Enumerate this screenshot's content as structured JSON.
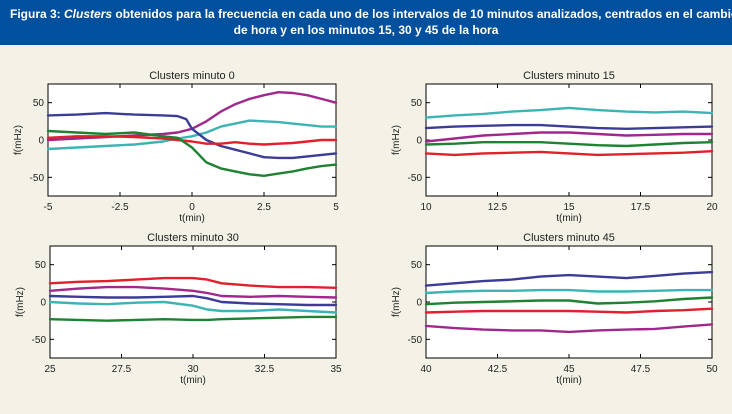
{
  "figure_title": {
    "prefix": "Figura 3: ",
    "italic_word": "Clusters",
    "line1_rest": " obtenidos para la frecuencia en cada uno de los intervalos de 10 minutos analizados, centrados en el cambio",
    "line2": "de hora y en los minutos 15, 30 y 45 de la hora"
  },
  "colors": {
    "header_bg": "#00509e",
    "page_bg": "#f4f1e6",
    "red": "#e0202a",
    "purple": "#a0288c",
    "blue": "#3c3c96",
    "cyan": "#3cb4b4",
    "green": "#1e8232"
  },
  "chart_data": [
    {
      "type": "line",
      "title": "Clusters minuto 0",
      "xlabel": "t(min)",
      "ylabel": "f(mHz)",
      "xlim": [
        -5,
        5
      ],
      "ylim": [
        -75,
        75
      ],
      "xticks": [
        -5,
        -2.5,
        0,
        2.5,
        5
      ],
      "xtick_labels": [
        "-5",
        "-2.5",
        "0",
        "2.5",
        "5"
      ],
      "yticks": [
        -50,
        0,
        50
      ],
      "ytick_labels": [
        "-50",
        "0",
        "50"
      ],
      "series": [
        {
          "color": "#a0288c",
          "x": [
            -5,
            -4,
            -3,
            -2,
            -1,
            -0.5,
            0,
            0.5,
            1,
            1.5,
            2,
            2.5,
            3,
            3.5,
            4,
            4.5,
            5
          ],
          "y": [
            0,
            2,
            4,
            6,
            8,
            10,
            15,
            25,
            38,
            48,
            55,
            60,
            64,
            63,
            60,
            55,
            50
          ]
        },
        {
          "color": "#3cb4b4",
          "x": [
            -5,
            -4,
            -3,
            -2,
            -1,
            -0.5,
            0,
            0.5,
            1,
            1.5,
            2,
            2.5,
            3,
            3.5,
            4,
            4.5,
            5
          ],
          "y": [
            -12,
            -10,
            -8,
            -6,
            -2,
            2,
            5,
            10,
            18,
            22,
            26,
            25,
            24,
            22,
            20,
            18,
            18
          ]
        },
        {
          "color": "#3c3c96",
          "x": [
            -5,
            -4,
            -3,
            -2,
            -1,
            -0.5,
            -0.2,
            0,
            0.5,
            1,
            1.5,
            2,
            2.5,
            3,
            3.5,
            4,
            4.5,
            5
          ],
          "y": [
            33,
            34,
            36,
            34,
            33,
            32,
            28,
            15,
            0,
            -8,
            -13,
            -18,
            -23,
            -24,
            -24,
            -22,
            -20,
            -18
          ]
        },
        {
          "color": "#e0202a",
          "x": [
            -5,
            -4,
            -3,
            -2,
            -1,
            -0.5,
            0,
            0.5,
            1,
            1.5,
            2,
            2.5,
            3,
            3.5,
            4,
            4.5,
            5
          ],
          "y": [
            3,
            5,
            5,
            4,
            2,
            0,
            -2,
            -5,
            -5,
            -3,
            -5,
            -6,
            -5,
            -4,
            -2,
            0,
            0
          ]
        },
        {
          "color": "#1e8232",
          "x": [
            -5,
            -4,
            -3,
            -2,
            -1,
            -0.5,
            0,
            0.5,
            1,
            1.5,
            2,
            2.5,
            3,
            3.5,
            4,
            4.5,
            5
          ],
          "y": [
            12,
            10,
            8,
            10,
            5,
            3,
            -10,
            -30,
            -38,
            -42,
            -46,
            -48,
            -45,
            -42,
            -38,
            -35,
            -33
          ]
        }
      ]
    },
    {
      "type": "line",
      "title": "Clusters minuto 15",
      "xlabel": "t(min)",
      "ylabel": "f(mHz)",
      "xlim": [
        10,
        20
      ],
      "ylim": [
        -75,
        75
      ],
      "xticks": [
        10,
        12.5,
        15,
        17.5,
        20
      ],
      "xtick_labels": [
        "10",
        "12.5",
        "15",
        "17.5",
        "20"
      ],
      "yticks": [
        -50,
        0,
        50
      ],
      "ytick_labels": [
        "-50",
        "0",
        "50"
      ],
      "series": [
        {
          "color": "#3cb4b4",
          "x": [
            10,
            11,
            12,
            13,
            14,
            15,
            16,
            17,
            18,
            19,
            20
          ],
          "y": [
            30,
            33,
            35,
            38,
            40,
            43,
            40,
            38,
            37,
            38,
            36
          ]
        },
        {
          "color": "#3c3c96",
          "x": [
            10,
            11,
            12,
            13,
            14,
            15,
            16,
            17,
            18,
            19,
            20
          ],
          "y": [
            16,
            18,
            19,
            20,
            20,
            18,
            16,
            15,
            16,
            17,
            18
          ]
        },
        {
          "color": "#a0288c",
          "x": [
            10,
            11,
            12,
            13,
            14,
            15,
            16,
            17,
            18,
            19,
            20
          ],
          "y": [
            -2,
            2,
            6,
            8,
            10,
            10,
            8,
            6,
            7,
            8,
            8
          ]
        },
        {
          "color": "#1e8232",
          "x": [
            10,
            11,
            12,
            13,
            14,
            15,
            16,
            17,
            18,
            19,
            20
          ],
          "y": [
            -6,
            -5,
            -3,
            -3,
            -3,
            -5,
            -7,
            -8,
            -6,
            -4,
            -3
          ]
        },
        {
          "color": "#e0202a",
          "x": [
            10,
            11,
            12,
            13,
            14,
            15,
            16,
            17,
            18,
            19,
            20
          ],
          "y": [
            -18,
            -20,
            -18,
            -17,
            -16,
            -18,
            -20,
            -19,
            -18,
            -17,
            -15
          ]
        }
      ]
    },
    {
      "type": "line",
      "title": "Clusters minuto 30",
      "xlabel": "t(min)",
      "ylabel": "f(mHz)",
      "xlim": [
        25,
        35
      ],
      "ylim": [
        -75,
        75
      ],
      "xticks": [
        25,
        27.5,
        30,
        32.5,
        35
      ],
      "xtick_labels": [
        "25",
        "27.5",
        "30",
        "32.5",
        "35"
      ],
      "yticks": [
        -50,
        0,
        50
      ],
      "ytick_labels": [
        "-50",
        "0",
        "50"
      ],
      "series": [
        {
          "color": "#e0202a",
          "x": [
            25,
            26,
            27,
            28,
            29,
            30,
            30.5,
            31,
            32,
            33,
            34,
            35
          ],
          "y": [
            25,
            27,
            28,
            30,
            32,
            32,
            30,
            25,
            22,
            20,
            20,
            19
          ]
        },
        {
          "color": "#a0288c",
          "x": [
            25,
            26,
            27,
            28,
            29,
            30,
            30.5,
            31,
            32,
            33,
            34,
            35
          ],
          "y": [
            15,
            18,
            20,
            20,
            18,
            15,
            12,
            8,
            7,
            8,
            7,
            6
          ]
        },
        {
          "color": "#3c3c96",
          "x": [
            25,
            26,
            27,
            28,
            29,
            30,
            30.5,
            31,
            32,
            33,
            34,
            35
          ],
          "y": [
            8,
            7,
            6,
            6,
            7,
            8,
            5,
            0,
            -2,
            -3,
            -4,
            -4
          ]
        },
        {
          "color": "#3cb4b4",
          "x": [
            25,
            26,
            27,
            28,
            29,
            30,
            30.5,
            31,
            32,
            33,
            34,
            35
          ],
          "y": [
            0,
            -2,
            -3,
            -1,
            0,
            -5,
            -10,
            -12,
            -12,
            -10,
            -12,
            -14
          ]
        },
        {
          "color": "#1e8232",
          "x": [
            25,
            26,
            27,
            28,
            29,
            30,
            30.5,
            31,
            32,
            33,
            34,
            35
          ],
          "y": [
            -23,
            -24,
            -25,
            -24,
            -23,
            -24,
            -24,
            -23,
            -22,
            -21,
            -20,
            -20
          ]
        }
      ]
    },
    {
      "type": "line",
      "title": "Clusters minuto 45",
      "xlabel": "t(min)",
      "ylabel": "f(mHz)",
      "xlim": [
        40,
        50
      ],
      "ylim": [
        -75,
        75
      ],
      "xticks": [
        40,
        42.5,
        45,
        47.5,
        50
      ],
      "xtick_labels": [
        "40",
        "42.5",
        "45",
        "47.5",
        "50"
      ],
      "yticks": [
        -50,
        0,
        50
      ],
      "ytick_labels": [
        "-50",
        "0",
        "50"
      ],
      "series": [
        {
          "color": "#3c3c96",
          "x": [
            40,
            41,
            42,
            43,
            44,
            45,
            46,
            47,
            48,
            49,
            50
          ],
          "y": [
            22,
            25,
            28,
            30,
            34,
            36,
            34,
            32,
            35,
            38,
            40
          ]
        },
        {
          "color": "#3cb4b4",
          "x": [
            40,
            41,
            42,
            43,
            44,
            45,
            46,
            47,
            48,
            49,
            50
          ],
          "y": [
            12,
            14,
            15,
            15,
            16,
            16,
            14,
            14,
            15,
            16,
            16
          ]
        },
        {
          "color": "#1e8232",
          "x": [
            40,
            41,
            42,
            43,
            44,
            45,
            46,
            47,
            48,
            49,
            50
          ],
          "y": [
            -3,
            -1,
            0,
            1,
            2,
            2,
            -2,
            -1,
            1,
            4,
            6
          ]
        },
        {
          "color": "#e0202a",
          "x": [
            40,
            41,
            42,
            43,
            44,
            45,
            46,
            47,
            48,
            49,
            50
          ],
          "y": [
            -14,
            -13,
            -12,
            -12,
            -12,
            -12,
            -13,
            -14,
            -12,
            -11,
            -9
          ]
        },
        {
          "color": "#a0288c",
          "x": [
            40,
            41,
            42,
            43,
            44,
            45,
            46,
            47,
            48,
            49,
            50
          ],
          "y": [
            -32,
            -35,
            -37,
            -38,
            -38,
            -40,
            -38,
            -37,
            -36,
            -33,
            -30
          ]
        }
      ]
    }
  ]
}
